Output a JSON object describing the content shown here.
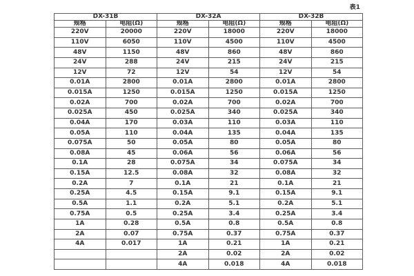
{
  "page": {
    "table_label": "表1"
  },
  "table": {
    "groups": [
      {
        "name": "DX-31B",
        "spec_header": "规格",
        "resistance_header": "电阻(Ω)"
      },
      {
        "name": "DX-32A",
        "spec_header": "规格",
        "resistance_header": "电阻(Ω)"
      },
      {
        "name": "DX-32B",
        "spec_header": "规格",
        "resistance_header": "电阻(Ω)"
      }
    ],
    "rows": [
      [
        "220V",
        "20000",
        "220V",
        "18000",
        "220V",
        "18000"
      ],
      [
        "110V",
        "6050",
        "110V",
        "4500",
        "110V",
        "4500"
      ],
      [
        "48V",
        "1150",
        "48V",
        "860",
        "48V",
        "860"
      ],
      [
        "24V",
        "288",
        "24V",
        "215",
        "24V",
        "215"
      ],
      [
        "12V",
        "72",
        "12V",
        "54",
        "12V",
        "54"
      ],
      [
        "0.01A",
        "2800",
        "0.01A",
        "2800",
        "0.01A",
        "2800"
      ],
      [
        "0.015A",
        "1250",
        "0.015A",
        "1250",
        "0.015A",
        "1250"
      ],
      [
        "0.02A",
        "700",
        "0.02A",
        "700",
        "0.02A",
        "700"
      ],
      [
        "0.025A",
        "450",
        "0.025A",
        "340",
        "0.025A",
        "340"
      ],
      [
        "0.04A",
        "170",
        "0.03A",
        "110",
        "0.03A",
        "110"
      ],
      [
        "0.05A",
        "110",
        "0.04A",
        "135",
        "0.04A",
        "135"
      ],
      [
        "0.075A",
        "50",
        "0.05A",
        "80",
        "0.05A",
        "80"
      ],
      [
        "0.08A",
        "45",
        "0.06A",
        "56",
        "0.06A",
        "56"
      ],
      [
        "0.1A",
        "28",
        "0.075A",
        "34",
        "0.075A",
        "34"
      ],
      [
        "0.15A",
        "12.5",
        "0.08A",
        "32",
        "0.08A",
        "32"
      ],
      [
        "0.2A",
        "7",
        "0.1A",
        "21",
        "0.1A",
        "21"
      ],
      [
        "0.25A",
        "4.5",
        "0.15A",
        "9.1",
        "0.15A",
        "9.1"
      ],
      [
        "0.5A",
        "1.1",
        "0.2A",
        "5.1",
        "0.2A",
        "5.1"
      ],
      [
        "0.75A",
        "0.5",
        "0.25A",
        "3.4",
        "0.25A",
        "3.4"
      ],
      [
        "1A",
        "0.28",
        "0.5A",
        "0.8",
        "0.5A",
        "0.8"
      ],
      [
        "2A",
        "0.07",
        "0.75A",
        "0.37",
        "0.75A",
        "0.37"
      ],
      [
        "4A",
        "0.017",
        "1A",
        "0.21",
        "1A",
        "0.21"
      ],
      [
        "",
        "",
        "2A",
        "0.02",
        "2A",
        "0.02"
      ],
      [
        "",
        "",
        "4A",
        "0.018",
        "4A",
        "0.018"
      ]
    ]
  }
}
